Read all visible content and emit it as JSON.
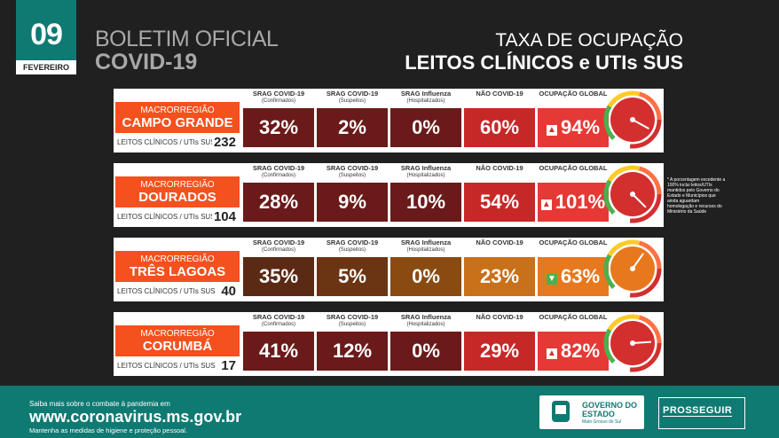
{
  "date": {
    "day": "09",
    "month": "FEVEREIRO"
  },
  "bulletin": {
    "line1": "BOLETIM OFICIAL",
    "line2": "COVID-19"
  },
  "title": {
    "line1": "TAXA DE OCUPAÇÃO",
    "line2": "LEITOS CLÍNICOS e UTIs SUS"
  },
  "columns": [
    {
      "name": "SRAG COVID-19",
      "sub": "(Confirmados)"
    },
    {
      "name": "SRAG COVID-19",
      "sub": "(Suspeitos)"
    },
    {
      "name": "SRAG Influenza",
      "sub": "(Hospitalizados)"
    },
    {
      "name": "NÃO COVID-19",
      "sub": ""
    },
    {
      "name": "OCUPAÇÃO GLOBAL",
      "sub": ""
    }
  ],
  "beds_label": "LEITOS CLÍNICOS / UTIs SUS",
  "region_prefix": "MACRORREGIÃO",
  "regions": [
    {
      "name": "CAMPO GRANDE",
      "beds": "232",
      "values": [
        "32%",
        "2%",
        "0%",
        "60%",
        "94%"
      ],
      "trend": "up",
      "occupancy": 94,
      "color": "#d32f2f"
    },
    {
      "name": "DOURADOS",
      "beds": "104",
      "values": [
        "28%",
        "9%",
        "10%",
        "54%",
        "101%"
      ],
      "trend": "up",
      "occupancy": 101,
      "color": "#d32f2f"
    },
    {
      "name": "TRÊS LAGOAS",
      "beds": "40",
      "values": [
        "35%",
        "5%",
        "0%",
        "23%",
        "63%"
      ],
      "trend": "down",
      "occupancy": 63,
      "color": "#e8781e"
    },
    {
      "name": "CORUMBÁ",
      "beds": "17",
      "values": [
        "41%",
        "12%",
        "0%",
        "29%",
        "82%"
      ],
      "trend": "up",
      "occupancy": 82,
      "color": "#d32f2f"
    }
  ],
  "note": "* A porcentagem excedente a 100% inclui leitos/UTIs mantidos pelo Governo do Estado e Municípios que ainda aguardam homologação e recursos do Ministério da Saúde",
  "footer": {
    "line1": "Saiba mais sobre o combate à pandemia em",
    "url_prefix": "www.",
    "url_bold": "coronavirus",
    "url_suffix": ".ms.gov.br",
    "line3": "Mantenha as medidas de higiene e proteção pessoal.",
    "gov": "GOVERNO DO ESTADO",
    "gov_sub": "Mato Grosso do Sul",
    "prosseguir": "PROSSEGUIR"
  },
  "palette": {
    "teal": "#0f7a72",
    "orange": "#f4511e",
    "dark_red": "#6b1a1a",
    "red": "#d32f2f"
  }
}
